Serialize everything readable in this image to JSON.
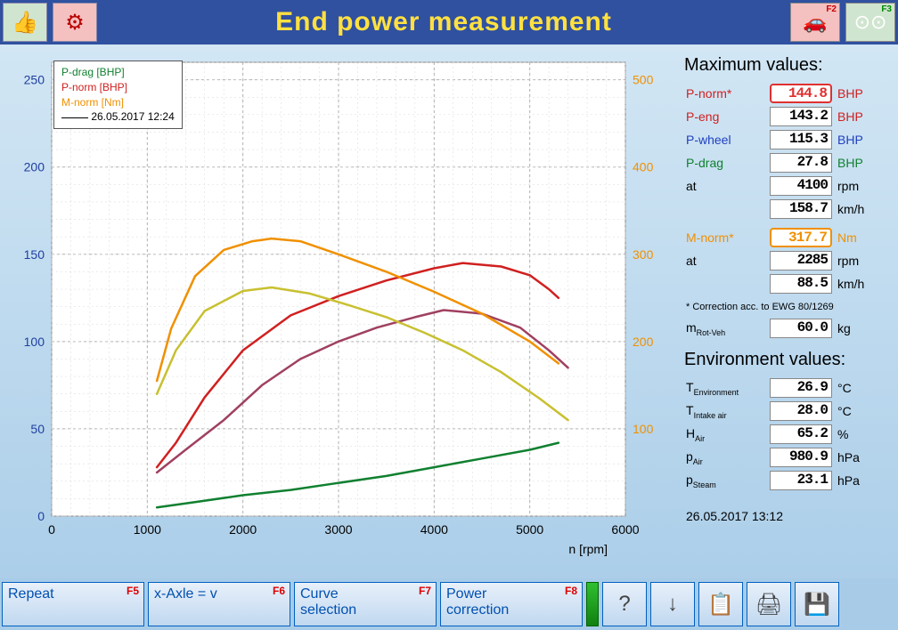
{
  "title": "End power measurement",
  "toolbar": {
    "f2_label": "F2",
    "f3_label": "F3"
  },
  "legend": {
    "items": [
      {
        "label": "P-drag [BHP]",
        "color": "#108030"
      },
      {
        "label": "P-norm [BHP]",
        "color": "#d02020"
      },
      {
        "label": "M-norm [Nm]",
        "color": "#f09000"
      }
    ],
    "timestamp": "26.05.2017 12:24"
  },
  "chart": {
    "type": "line",
    "xlabel": "n [rpm]",
    "xlim": [
      0,
      6000
    ],
    "xtick_step": 1000,
    "y1_lim": [
      0,
      260
    ],
    "y1_ticks": [
      0,
      50,
      100,
      150,
      200,
      250
    ],
    "y1_color": "#2040a0",
    "y2_lim": [
      0,
      520
    ],
    "y2_ticks_visible": [
      100,
      200,
      300,
      400,
      500
    ],
    "y2_color": "#f09000",
    "background_color": "#ffffff",
    "grid_major_color": "#b0b0b0",
    "grid_minor_color": "#d8d8d8",
    "line_width": 2.5,
    "series": [
      {
        "name": "P-drag",
        "color": "#108030",
        "axis": "y1",
        "x": [
          1100,
          1500,
          2000,
          2500,
          3000,
          3500,
          4000,
          4500,
          5000,
          5300
        ],
        "y": [
          5,
          8,
          12,
          15,
          19,
          23,
          28,
          33,
          38,
          42
        ]
      },
      {
        "name": "P-norm",
        "color": "#d02020",
        "axis": "y1",
        "x": [
          1100,
          1300,
          1600,
          2000,
          2500,
          3000,
          3500,
          4000,
          4300,
          4700,
          5000,
          5200,
          5300
        ],
        "y": [
          28,
          42,
          68,
          95,
          115,
          126,
          135,
          142,
          145,
          143,
          138,
          130,
          125
        ]
      },
      {
        "name": "P-norm-prev",
        "color": "#a04060",
        "axis": "y1",
        "x": [
          1100,
          1400,
          1800,
          2200,
          2600,
          3000,
          3400,
          3800,
          4100,
          4500,
          4900,
          5200,
          5400
        ],
        "y": [
          25,
          38,
          55,
          75,
          90,
          100,
          108,
          114,
          118,
          116,
          108,
          95,
          85
        ]
      },
      {
        "name": "M-norm",
        "color": "#f09000",
        "axis": "y2",
        "x": [
          1100,
          1250,
          1500,
          1800,
          2100,
          2300,
          2600,
          3000,
          3500,
          4000,
          4500,
          5000,
          5300
        ],
        "y": [
          155,
          215,
          275,
          305,
          315,
          318,
          315,
          300,
          280,
          257,
          232,
          200,
          175
        ]
      },
      {
        "name": "M-norm-prev",
        "color": "#c8c030",
        "axis": "y2",
        "x": [
          1100,
          1300,
          1600,
          2000,
          2300,
          2700,
          3100,
          3500,
          3900,
          4300,
          4700,
          5100,
          5400
        ],
        "y": [
          140,
          190,
          235,
          258,
          262,
          255,
          242,
          228,
          210,
          190,
          165,
          135,
          110
        ]
      }
    ]
  },
  "max_values": {
    "heading": "Maximum values:",
    "rows": [
      {
        "label": "P-norm*",
        "value": "144.8",
        "unit": "BHP",
        "label_color": "#d02020",
        "unit_color": "#d02020",
        "box": "red"
      },
      {
        "label": "P-eng",
        "value": "143.2",
        "unit": "BHP",
        "label_color": "#d02020",
        "unit_color": "#d02020"
      },
      {
        "label": "P-wheel",
        "value": "115.3",
        "unit": "BHP",
        "label_color": "#2040c0",
        "unit_color": "#2040c0"
      },
      {
        "label": "P-drag",
        "value": "27.8",
        "unit": "BHP",
        "label_color": "#108030",
        "unit_color": "#108030"
      },
      {
        "label": "at",
        "value": "4100",
        "unit": "rpm"
      },
      {
        "label": "",
        "value": "158.7",
        "unit": "km/h"
      }
    ],
    "rows2": [
      {
        "label": "M-norm*",
        "value": "317.7",
        "unit": "Nm",
        "label_color": "#f09000",
        "unit_color": "#f09000",
        "box": "org"
      },
      {
        "label": "at",
        "value": "2285",
        "unit": "rpm"
      },
      {
        "label": "",
        "value": "88.5",
        "unit": "km/h"
      }
    ],
    "note": "* Correction acc. to EWG 80/1269",
    "mrot": {
      "label": "m",
      "sub": "Rot-Veh",
      "value": "60.0",
      "unit": "kg"
    }
  },
  "env_values": {
    "heading": "Environment values:",
    "rows": [
      {
        "label": "T",
        "sub": "Environment",
        "value": "26.9",
        "unit": "°C"
      },
      {
        "label": "T",
        "sub": "Intake air",
        "value": "28.0",
        "unit": "°C"
      },
      {
        "label": "H",
        "sub": "Air",
        "value": "65.2",
        "unit": "%"
      },
      {
        "label": "p",
        "sub": "Air",
        "value": "980.9",
        "unit": "hPa"
      },
      {
        "label": "p",
        "sub": "Steam",
        "value": "23.1",
        "unit": "hPa"
      }
    ]
  },
  "side_timestamp": "26.05.2017  13:12",
  "bottom": {
    "buttons": [
      {
        "label": "Repeat",
        "fkey": "F5"
      },
      {
        "label": "x-Axle = v",
        "fkey": "F6"
      },
      {
        "label": "Curve\nselection",
        "fkey": "F7"
      },
      {
        "label": "Power\ncorrection",
        "fkey": "F8"
      }
    ]
  }
}
